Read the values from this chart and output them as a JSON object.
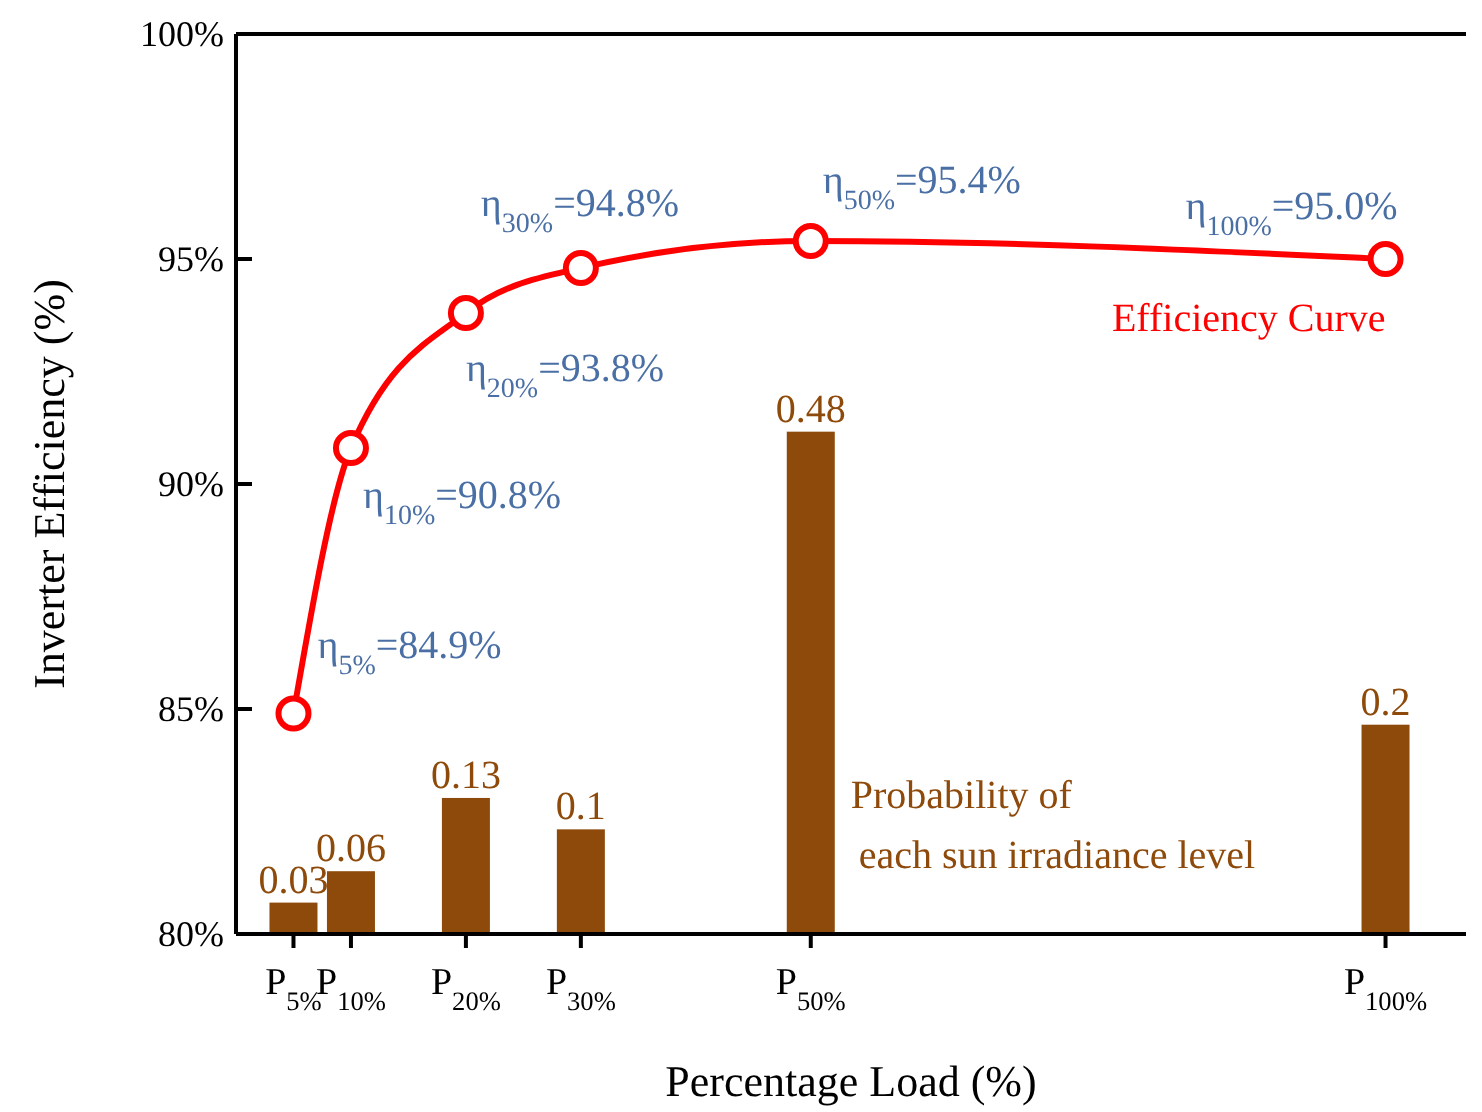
{
  "chart_data": {
    "type": "line",
    "xlabel": "Percentage Load (%)",
    "ylabel": "Inverter Efficiency (%)",
    "x": [
      5,
      10,
      20,
      30,
      50,
      100
    ],
    "xlim": [
      0,
      107
    ],
    "xticks": [
      {
        "value": 5,
        "label": "P$_{5%}$"
      },
      {
        "value": 10,
        "label": "P$_{10%}$"
      },
      {
        "value": 20,
        "label": "P$_{20%}$"
      },
      {
        "value": 30,
        "label": "P$_{30%}$"
      },
      {
        "value": 50,
        "label": "P$_{50%}$"
      },
      {
        "value": 100,
        "label": "P$_{100%}$"
      }
    ],
    "ylim": [
      80,
      100
    ],
    "yticks": [
      {
        "value": 80,
        "label": "80%"
      },
      {
        "value": 85,
        "label": "85%"
      },
      {
        "value": 90,
        "label": "90%"
      },
      {
        "value": 95,
        "label": "95%"
      },
      {
        "value": 100,
        "label": "100%"
      }
    ],
    "y2lim": [
      0,
      0.86
    ],
    "series": [
      {
        "name": "Probability of each sun irradiance level",
        "type": "bar",
        "axis": "y2",
        "color": "#8e4a0b",
        "values": [
          0.03,
          0.06,
          0.13,
          0.1,
          0.48,
          0.2
        ],
        "data_labels": true
      },
      {
        "name": "Efficiency Curve",
        "color": "#ff0000",
        "marker": "circle",
        "values": [
          84.9,
          90.8,
          93.8,
          94.8,
          95.4,
          95.0
        ]
      }
    ],
    "annotations": [
      {
        "text": "η$_{5%}$=84.9%",
        "x": 5,
        "y": 84.9
      },
      {
        "text": "η$_{10%}$=90.8%",
        "x": 10,
        "y": 90.8
      },
      {
        "text": "η$_{20%}$=93.8%",
        "x": 20,
        "y": 93.8
      },
      {
        "text": "η$_{30%}$=94.8%",
        "x": 30,
        "y": 94.8
      },
      {
        "text": "η$_{50%}$=95.4%",
        "x": 50,
        "y": 95.4
      },
      {
        "text": "η$_{100%}$=95.0%",
        "x": 100,
        "y": 95.0
      }
    ],
    "grid": false
  }
}
